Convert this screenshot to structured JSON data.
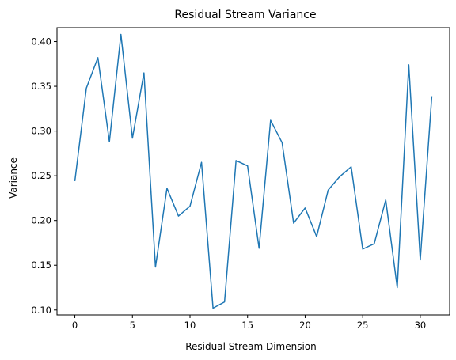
{
  "chart_data": {
    "type": "line",
    "title": "Residual Stream Variance",
    "xlabel": "Residual Stream Dimension",
    "ylabel": "Variance",
    "xlim": [
      -1.55,
      32.55
    ],
    "ylim": [
      0.0945,
      0.4155
    ],
    "grid": false,
    "colors": {
      "line": "#1f77b4"
    },
    "xticks": [
      {
        "value": 0,
        "label": "0"
      },
      {
        "value": 5,
        "label": "5"
      },
      {
        "value": 10,
        "label": "10"
      },
      {
        "value": 15,
        "label": "15"
      },
      {
        "value": 20,
        "label": "20"
      },
      {
        "value": 25,
        "label": "25"
      },
      {
        "value": 30,
        "label": "30"
      }
    ],
    "yticks": [
      {
        "value": 0.1,
        "label": "0.10"
      },
      {
        "value": 0.15,
        "label": "0.15"
      },
      {
        "value": 0.2,
        "label": "0.20"
      },
      {
        "value": 0.25,
        "label": "0.25"
      },
      {
        "value": 0.3,
        "label": "0.30"
      },
      {
        "value": 0.35,
        "label": "0.35"
      },
      {
        "value": 0.4,
        "label": "0.40"
      }
    ],
    "series": [
      {
        "x": [
          0,
          1,
          2,
          3,
          4,
          5,
          6,
          7,
          8,
          9,
          10,
          11,
          12,
          13,
          14,
          15,
          16,
          17,
          18,
          19,
          20,
          21,
          22,
          23,
          24,
          25,
          26,
          27,
          28,
          29,
          30,
          31
        ],
        "values": [
          0.244,
          0.348,
          0.382,
          0.288,
          0.408,
          0.292,
          0.365,
          0.148,
          0.236,
          0.205,
          0.216,
          0.265,
          0.102,
          0.109,
          0.267,
          0.261,
          0.169,
          0.312,
          0.287,
          0.197,
          0.214,
          0.182,
          0.234,
          0.249,
          0.26,
          0.168,
          0.174,
          0.223,
          0.125,
          0.374,
          0.156,
          0.339
        ]
      }
    ]
  }
}
